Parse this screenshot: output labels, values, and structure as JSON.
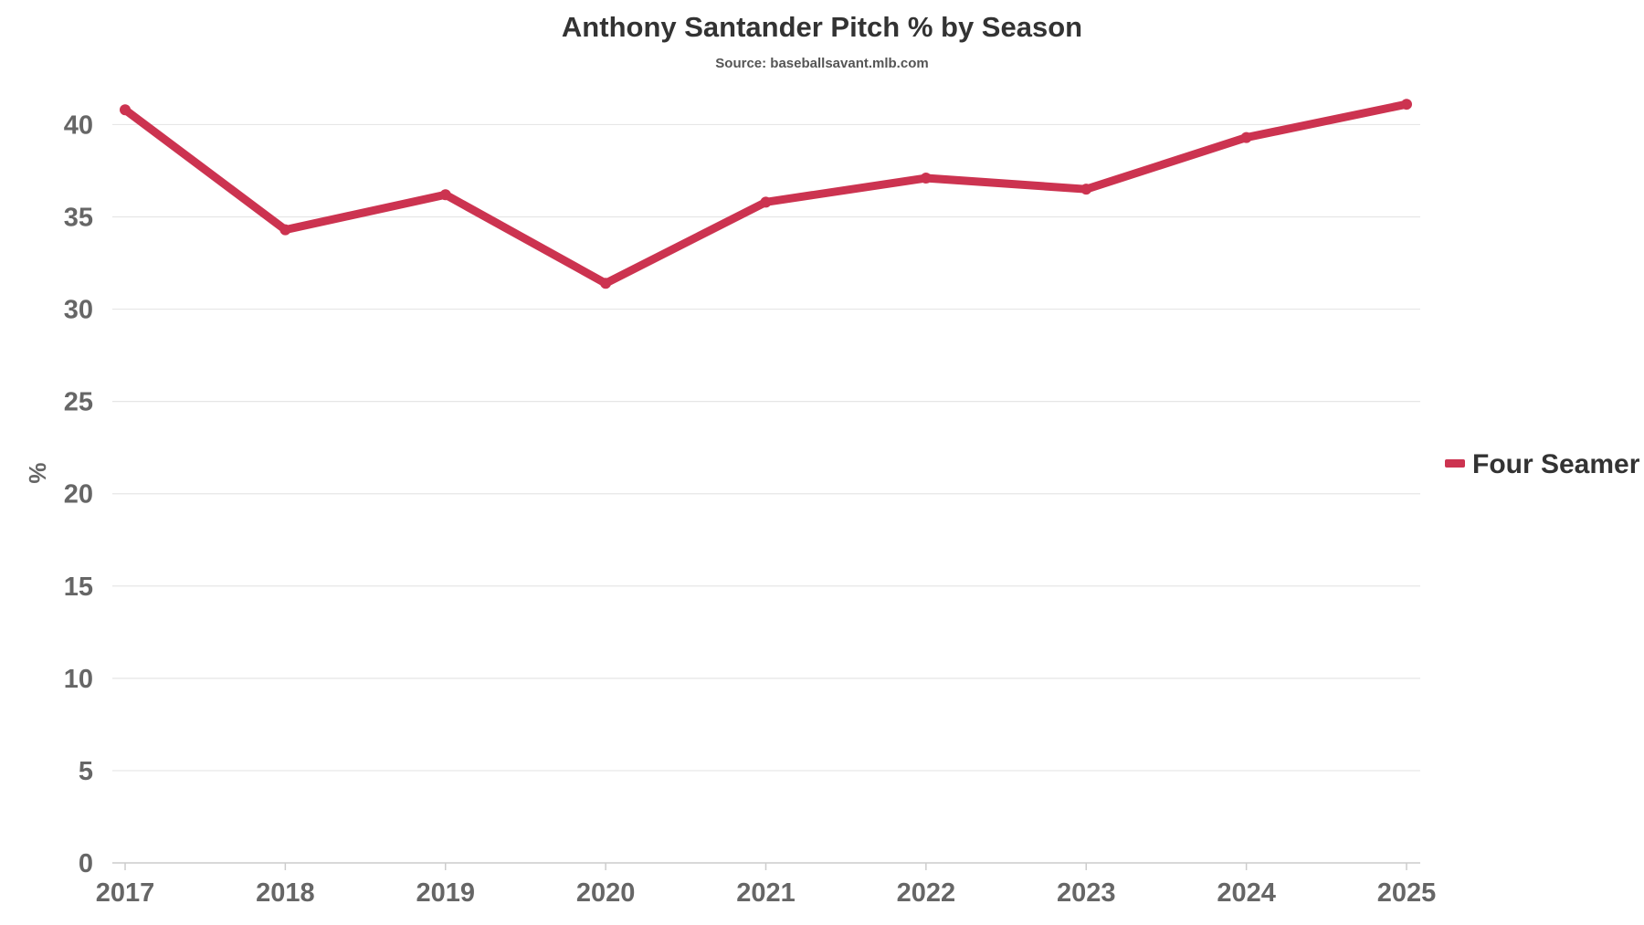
{
  "chart_data": {
    "type": "line",
    "title": "Anthony Santander Pitch % by Season",
    "subtitle": "Source: baseballsavant.mlb.com",
    "xlabel": "",
    "ylabel": "%",
    "x": [
      "2017",
      "2018",
      "2019",
      "2020",
      "2021",
      "2022",
      "2023",
      "2024",
      "2025"
    ],
    "ylim": [
      0,
      42
    ],
    "yticks": [
      0,
      5,
      10,
      15,
      20,
      25,
      30,
      35,
      40
    ],
    "grid": true,
    "legend_position": "right",
    "series": [
      {
        "name": "Four Seamer",
        "color": "#cc3350",
        "values": [
          40.8,
          34.3,
          36.2,
          31.4,
          35.8,
          37.1,
          36.5,
          39.3,
          41.1
        ]
      }
    ]
  }
}
